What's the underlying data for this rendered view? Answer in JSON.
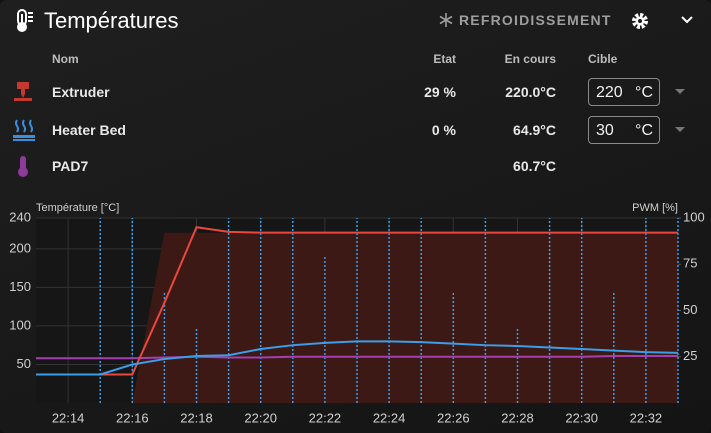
{
  "header": {
    "title": "Températures",
    "button": "REFROIDISSEMENT"
  },
  "table": {
    "columns": [
      "Nom",
      "Etat",
      "En cours",
      "Cible"
    ],
    "rows": [
      {
        "name": "Extruder",
        "state": "29 %",
        "current": "220.0°C",
        "target": "220",
        "unit": "°C"
      },
      {
        "name": "Heater Bed",
        "state": "0 %",
        "current": "64.9°C",
        "target": "30",
        "unit": "°C"
      },
      {
        "name": "PAD7",
        "current": "60.7°C"
      }
    ]
  },
  "chart_data": {
    "type": "line",
    "y_label": "Température [°C]",
    "y2_label": "PWM [%]",
    "x": [
      "22:13",
      "22:14",
      "22:15",
      "22:16",
      "22:17",
      "22:18",
      "22:19",
      "22:20",
      "22:21",
      "22:22",
      "22:23",
      "22:24",
      "22:25",
      "22:26",
      "22:27",
      "22:28",
      "22:29",
      "22:30",
      "22:31",
      "22:32",
      "22:33"
    ],
    "xlim": [
      "22:13",
      "22:33"
    ],
    "xticks": [
      "22:14",
      "22:16",
      "22:18",
      "22:20",
      "22:22",
      "22:24",
      "22:26",
      "22:28",
      "22:30",
      "22:32"
    ],
    "ylim": [
      0,
      240
    ],
    "yticks": [
      50,
      100,
      150,
      200,
      240
    ],
    "y2lim": [
      0,
      100
    ],
    "y2ticks": [
      25,
      50,
      75,
      100
    ],
    "grid": true,
    "series": [
      {
        "kind": "area",
        "axis": "y2",
        "color": "#3d1915",
        "values": [
          0,
          0,
          0,
          0,
          92,
          92,
          92,
          92,
          92,
          92,
          92,
          92,
          92,
          92,
          92,
          92,
          92,
          92,
          92,
          92,
          92
        ]
      },
      {
        "kind": "stems",
        "axis": "y2",
        "color": "#3a9ee8",
        "values": [
          0,
          0,
          100,
          100,
          60,
          40,
          100,
          100,
          100,
          80,
          100,
          100,
          100,
          60,
          100,
          40,
          100,
          100,
          60,
          100,
          100
        ]
      },
      {
        "kind": "line",
        "color": "#a33fb0",
        "values": [
          58,
          58,
          58,
          58,
          59,
          60,
          59,
          59,
          60,
          60,
          60,
          60,
          60,
          60,
          60,
          60,
          60,
          60,
          61,
          61,
          61
        ]
      },
      {
        "kind": "line",
        "color": "#e8483f",
        "values": [
          37,
          37,
          37,
          37,
          130,
          228,
          222,
          221,
          221,
          221,
          221,
          221,
          221,
          221,
          221,
          221,
          221,
          221,
          221,
          221,
          221
        ]
      },
      {
        "kind": "line",
        "color": "#3a9ee8",
        "values": [
          37,
          37,
          37,
          50,
          57,
          61,
          62,
          70,
          75,
          78,
          80,
          80,
          79,
          77,
          75,
          74,
          72,
          70,
          68,
          66,
          65
        ]
      }
    ]
  }
}
